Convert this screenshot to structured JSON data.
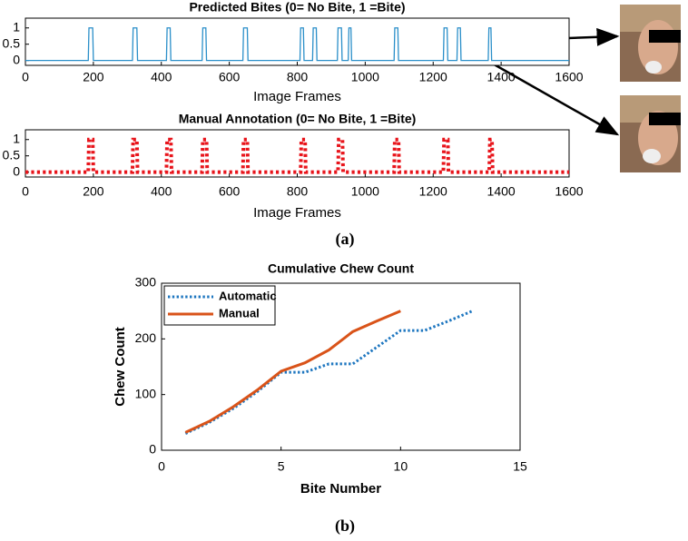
{
  "chart_data": [
    {
      "type": "line",
      "title": "Predicted Bites (0= No Bite, 1 =Bite)",
      "xlabel": "Image Frames",
      "xlim": [
        0,
        1600
      ],
      "xticks": [
        0,
        200,
        400,
        600,
        800,
        1000,
        1200,
        1400,
        1600
      ],
      "ylim": [
        -0.15,
        1.3
      ],
      "yticks": [
        0,
        0.5,
        1
      ],
      "series": [
        {
          "color": "#2a8fc9",
          "line_style": "solid",
          "x": [
            0,
            185,
            187,
            198,
            200,
            315,
            317,
            328,
            330,
            415,
            417,
            426,
            428,
            520,
            522,
            531,
            533,
            640,
            642,
            653,
            655,
            808,
            810,
            818,
            820,
            845,
            847,
            856,
            858,
            918,
            920,
            930,
            932,
            950,
            952,
            958,
            960,
            1085,
            1087,
            1096,
            1098,
            1230,
            1232,
            1241,
            1243,
            1270,
            1272,
            1280,
            1282,
            1362,
            1364,
            1370,
            1372,
            1600
          ],
          "values": [
            0,
            0,
            1,
            1,
            0,
            0,
            1,
            1,
            0,
            0,
            1,
            1,
            0,
            0,
            1,
            1,
            0,
            0,
            1,
            1,
            0,
            0,
            1,
            1,
            0,
            0,
            1,
            1,
            0,
            0,
            1,
            1,
            0,
            0,
            1,
            1,
            0,
            0,
            1,
            1,
            0,
            0,
            1,
            1,
            0,
            0,
            1,
            1,
            0,
            0,
            1,
            1,
            0,
            0
          ]
        }
      ]
    },
    {
      "type": "line",
      "title": "Manual Annotation (0= No Bite, 1 =Bite)",
      "xlabel": "Image Frames",
      "xlim": [
        0,
        1600
      ],
      "xticks": [
        0,
        200,
        400,
        600,
        800,
        1000,
        1200,
        1400,
        1600
      ],
      "ylim": [
        -0.15,
        1.3
      ],
      "yticks": [
        0,
        0.5,
        1
      ],
      "series": [
        {
          "color": "#e8141b",
          "line_style": "dotted",
          "x": [
            0,
            185,
            187,
            198,
            200,
            315,
            317,
            328,
            330,
            415,
            417,
            428,
            430,
            520,
            522,
            533,
            535,
            640,
            642,
            653,
            655,
            810,
            812,
            823,
            825,
            920,
            922,
            933,
            935,
            1085,
            1087,
            1098,
            1100,
            1230,
            1232,
            1243,
            1245,
            1365,
            1367,
            1373,
            1375,
            1600
          ],
          "values": [
            0,
            0,
            1,
            1,
            0,
            0,
            1,
            1,
            0,
            0,
            1,
            1,
            0,
            0,
            1,
            1,
            0,
            0,
            1,
            1,
            0,
            0,
            1,
            1,
            0,
            0,
            1,
            1,
            0,
            0,
            1,
            1,
            0,
            0,
            1,
            1,
            0,
            0,
            1,
            1,
            0,
            0
          ]
        }
      ]
    },
    {
      "type": "line",
      "title": "Cumulative Chew Count",
      "xlabel": "Bite Number",
      "ylabel": "Chew Count",
      "xlim": [
        0,
        15
      ],
      "xticks": [
        0,
        5,
        10,
        15
      ],
      "ylim": [
        0,
        300
      ],
      "yticks": [
        0,
        100,
        200,
        300
      ],
      "legend": "upper left",
      "series": [
        {
          "name": "Automatic",
          "color": "#1f77c0",
          "line_style": "dotted",
          "x": [
            1,
            2,
            3,
            4,
            5,
            6,
            7,
            8,
            9,
            10,
            11,
            12,
            13
          ],
          "values": [
            30,
            50,
            75,
            105,
            140,
            140,
            155,
            155,
            185,
            215,
            215,
            232,
            250
          ]
        },
        {
          "name": "Manual",
          "color": "#d95319",
          "line_style": "solid",
          "x": [
            1,
            2,
            3,
            4,
            5,
            6,
            7,
            8,
            9,
            10
          ],
          "values": [
            32,
            52,
            78,
            108,
            142,
            157,
            180,
            213,
            232,
            250
          ]
        }
      ]
    }
  ],
  "panels": [
    {
      "label": "(a)"
    },
    {
      "label": "(b)"
    }
  ]
}
